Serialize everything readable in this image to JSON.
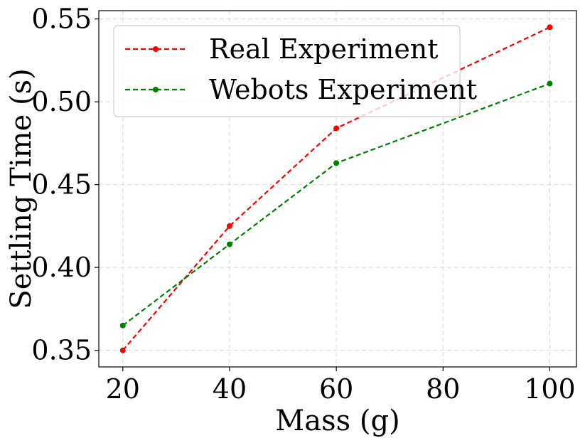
{
  "chart_data": {
    "type": "line",
    "title": "",
    "xlabel": "Mass (g)",
    "ylabel": "Settling Time (s)",
    "xlim": [
      15.5,
      105
    ],
    "ylim": [
      0.34,
      0.555
    ],
    "xticks": [
      20,
      40,
      60,
      80,
      100
    ],
    "xtick_labels": [
      "20",
      "40",
      "60",
      "80",
      "100"
    ],
    "yticks": [
      0.35,
      0.4,
      0.45,
      0.5,
      0.55
    ],
    "ytick_labels": [
      "0.35",
      "0.40",
      "0.45",
      "0.50",
      "0.55"
    ],
    "grid": true,
    "legend_position": "top-left",
    "series": [
      {
        "name": "Real Experiment",
        "color": "#ff0000",
        "line_style": "dashed",
        "marker": "circle",
        "x": [
          20,
          40,
          60,
          100
        ],
        "y": [
          0.35,
          0.425,
          0.484,
          0.545
        ]
      },
      {
        "name": "Webots Experiment",
        "color": "#008000",
        "line_style": "dashed",
        "marker": "circle",
        "x": [
          20,
          40,
          60,
          100
        ],
        "y": [
          0.365,
          0.414,
          0.463,
          0.511
        ]
      }
    ]
  }
}
